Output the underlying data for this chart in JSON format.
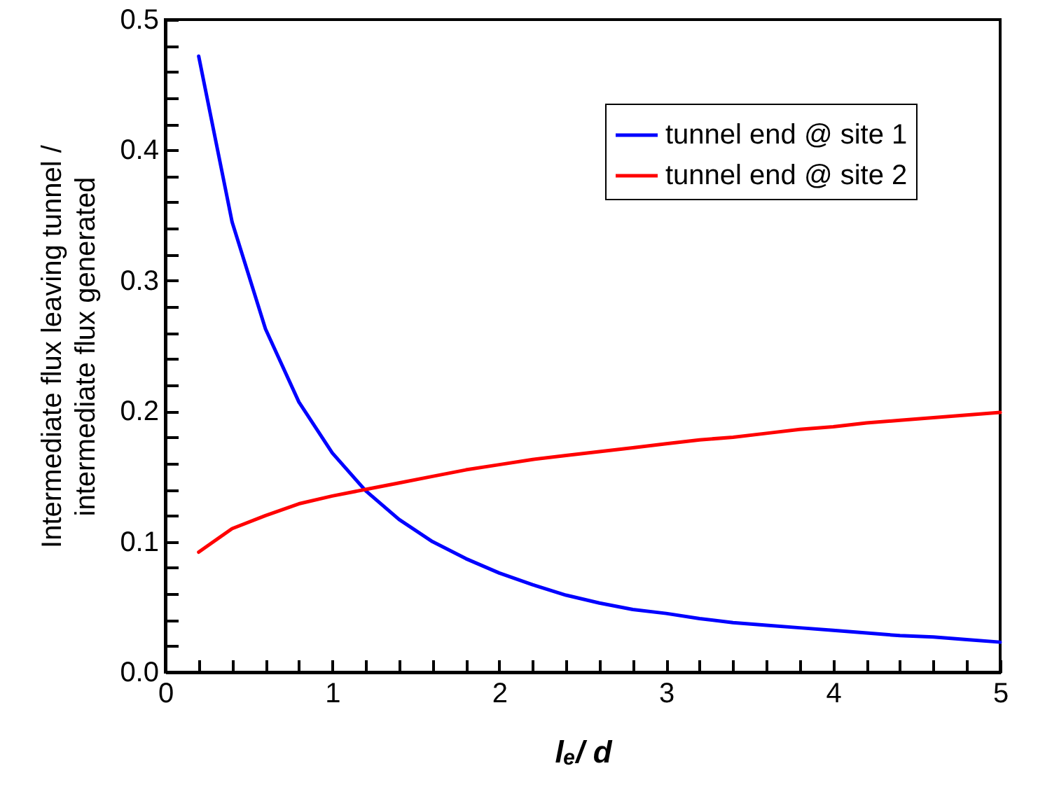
{
  "chart_data": {
    "type": "line",
    "xlabel": "lₑ/ d",
    "ylabel": "Intermediate flux leaving tunnel /\nintermediate flux generated",
    "x": [
      0.2,
      0.4,
      0.6,
      0.8,
      1.0,
      1.2,
      1.4,
      1.6,
      1.8,
      2.0,
      2.2,
      2.4,
      2.6,
      2.8,
      3.0,
      3.2,
      3.4,
      3.6,
      3.8,
      4.0,
      4.2,
      4.4,
      4.6,
      4.8,
      5.0
    ],
    "series": [
      {
        "name": "tunnel end @ site 1",
        "color": "#0000ff",
        "values": [
          0.472,
          0.345,
          0.263,
          0.207,
          0.168,
          0.139,
          0.117,
          0.1,
          0.087,
          0.076,
          0.067,
          0.059,
          0.053,
          0.048,
          0.045,
          0.041,
          0.038,
          0.036,
          0.034,
          0.032,
          0.03,
          0.028,
          0.027,
          0.025,
          0.023
        ]
      },
      {
        "name": "tunnel end @ site 2",
        "color": "#ff0000",
        "values": [
          0.092,
          0.11,
          0.12,
          0.129,
          0.135,
          0.14,
          0.145,
          0.15,
          0.155,
          0.159,
          0.163,
          0.166,
          0.169,
          0.172,
          0.175,
          0.178,
          0.18,
          0.183,
          0.186,
          0.188,
          0.191,
          0.193,
          0.195,
          0.197,
          0.199
        ]
      }
    ],
    "xlim": [
      0,
      5
    ],
    "ylim": [
      0,
      0.5
    ],
    "xticks": [
      0,
      {
        "value": 0.2,
        "label": null
      },
      {
        "value": 0.4,
        "label": null
      },
      {
        "value": 0.6,
        "label": null
      },
      {
        "value": 0.8,
        "label": null
      },
      1,
      {
        "value": 1.2,
        "label": null
      },
      {
        "value": 1.4,
        "label": null
      },
      {
        "value": 1.6,
        "label": null
      },
      {
        "value": 1.8,
        "label": null
      },
      2,
      {
        "value": 2.2,
        "label": null
      },
      {
        "value": 2.4,
        "label": null
      },
      {
        "value": 2.6,
        "label": null
      },
      {
        "value": 2.8,
        "label": null
      },
      3,
      {
        "value": 3.2,
        "label": null
      },
      {
        "value": 3.4,
        "label": null
      },
      {
        "value": 3.6,
        "label": null
      },
      {
        "value": 3.8,
        "label": null
      },
      4,
      {
        "value": 4.2,
        "label": null
      },
      {
        "value": 4.4,
        "label": null
      },
      {
        "value": 4.6,
        "label": null
      },
      {
        "value": 4.8,
        "label": null
      },
      5
    ],
    "yticks": [
      {
        "value": 0,
        "label": "0.0"
      },
      {
        "value": 0.02,
        "label": null
      },
      {
        "value": 0.04,
        "label": null
      },
      {
        "value": 0.06,
        "label": null
      },
      {
        "value": 0.08,
        "label": null
      },
      {
        "value": 0.1,
        "label": "0.1"
      },
      {
        "value": 0.12,
        "label": null
      },
      {
        "value": 0.14,
        "label": null
      },
      {
        "value": 0.16,
        "label": null
      },
      {
        "value": 0.18,
        "label": null
      },
      {
        "value": 0.2,
        "label": "0.2"
      },
      {
        "value": 0.22,
        "label": null
      },
      {
        "value": 0.24,
        "label": null
      },
      {
        "value": 0.26,
        "label": null
      },
      {
        "value": 0.28,
        "label": null
      },
      {
        "value": 0.3,
        "label": "0.3"
      },
      {
        "value": 0.32,
        "label": null
      },
      {
        "value": 0.34,
        "label": null
      },
      {
        "value": 0.36,
        "label": null
      },
      {
        "value": 0.38,
        "label": null
      },
      {
        "value": 0.4,
        "label": "0.4"
      },
      {
        "value": 0.42,
        "label": null
      },
      {
        "value": 0.44,
        "label": null
      },
      {
        "value": 0.46,
        "label": null
      },
      {
        "value": 0.48,
        "label": null
      },
      {
        "value": 0.5,
        "label": "0.5"
      }
    ],
    "grid": false,
    "legend": "top right",
    "marker": "none",
    "line_style": "solid"
  }
}
